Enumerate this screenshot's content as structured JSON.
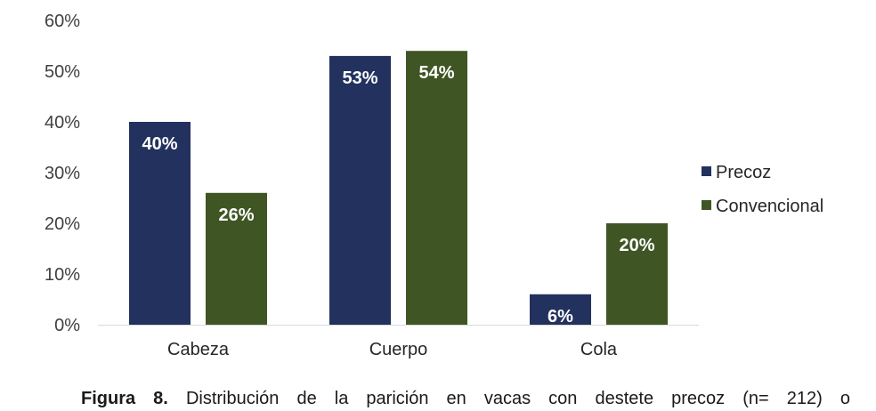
{
  "chart_data": {
    "type": "bar",
    "categories": [
      "Cabeza",
      "Cuerpo",
      "Cola"
    ],
    "series": [
      {
        "name": "Precoz",
        "values": [
          40,
          53,
          6
        ],
        "labels": [
          "40%",
          "53%",
          "6%"
        ],
        "color": "#22315E"
      },
      {
        "name": "Convencional",
        "values": [
          26,
          54,
          20
        ],
        "labels": [
          "26%",
          "54%",
          "20%"
        ],
        "color": "#3F5624"
      }
    ],
    "ylim": [
      0,
      60
    ],
    "yticks": [
      0,
      10,
      20,
      30,
      40,
      50,
      60
    ],
    "ytick_labels": [
      "0%",
      "10%",
      "20%",
      "30%",
      "40%",
      "50%",
      "60%"
    ],
    "grid": false,
    "legend_position": "right"
  },
  "caption": {
    "label": "Figura 8.",
    "text": "Distribución de la parición en vacas con destete precoz (n= 212) o"
  }
}
